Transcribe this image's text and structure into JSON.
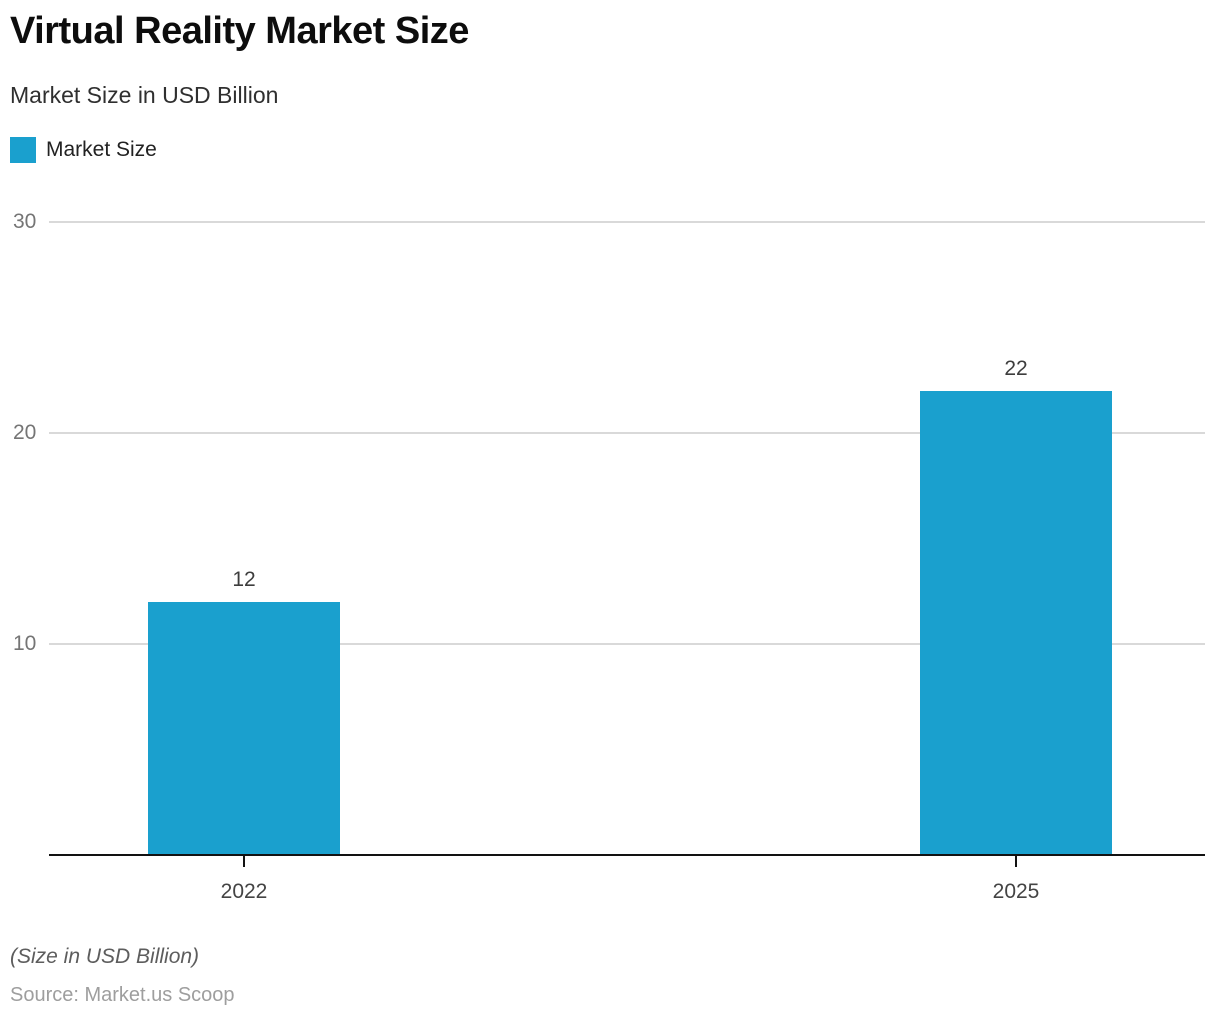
{
  "title": "Virtual Reality Market Size",
  "subtitle": "Market Size in USD Billion",
  "legend": {
    "label": "Market Size",
    "color": "#1AA0CE"
  },
  "footer": {
    "note": "(Size in USD Billion)",
    "source": "Source: Market.us Scoop"
  },
  "chart_data": {
    "type": "bar",
    "categories": [
      "2022",
      "2025"
    ],
    "values": [
      12,
      22
    ],
    "series": [
      {
        "name": "Market Size",
        "values": [
          12,
          22
        ]
      }
    ],
    "title": "Virtual Reality Market Size",
    "subtitle": "Market Size in USD Billion",
    "xlabel": "",
    "ylabel": "",
    "yticks": [
      10,
      20,
      30
    ],
    "ylim": [
      0,
      30
    ],
    "grid": true,
    "legend_position": "top-left",
    "bar_color": "#1AA0CE",
    "gridline_color": "#D9D9D9",
    "axis_color": "#121212",
    "ytick_label_color": "#757575",
    "data_labels": [
      12,
      22
    ],
    "data_labels_shown": true
  }
}
